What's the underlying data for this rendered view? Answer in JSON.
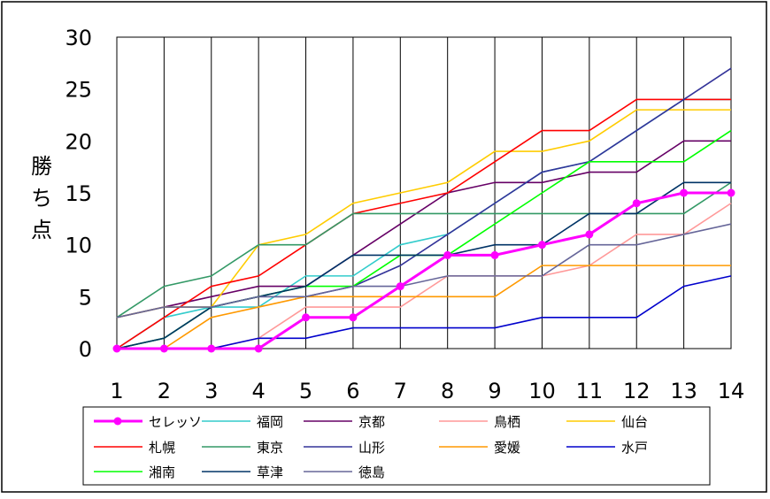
{
  "chart_data": {
    "type": "line",
    "title": "",
    "xlabel": "",
    "ylabel": "勝ち点",
    "ylim": [
      0,
      30
    ],
    "yticks": [
      0,
      5,
      10,
      15,
      20,
      25,
      30
    ],
    "x": [
      1,
      2,
      3,
      4,
      5,
      6,
      7,
      8,
      9,
      10,
      11,
      12,
      13,
      14
    ],
    "grid": "vertical",
    "legend_position": "bottom",
    "series": [
      {
        "name": "セレッソ",
        "color": "#ff00ff",
        "marker": true,
        "values": [
          0,
          0,
          0,
          0,
          3,
          3,
          6,
          9,
          9,
          10,
          11,
          14,
          15,
          15
        ]
      },
      {
        "name": "福岡",
        "color": "#33cccc",
        "marker": false,
        "values": [
          0,
          3,
          4,
          4,
          7,
          7,
          10,
          11,
          14,
          17,
          18,
          21,
          24,
          24
        ]
      },
      {
        "name": "京都",
        "color": "#660066",
        "marker": false,
        "values": [
          3,
          4,
          5,
          6,
          6,
          9,
          12,
          15,
          16,
          16,
          17,
          17,
          20,
          20
        ]
      },
      {
        "name": "鳥栖",
        "color": "#ff9999",
        "marker": false,
        "values": [
          0,
          0,
          0,
          1,
          4,
          4,
          4,
          7,
          7,
          7,
          8,
          11,
          11,
          14
        ]
      },
      {
        "name": "仙台",
        "color": "#ffcc00",
        "marker": false,
        "values": [
          3,
          4,
          4,
          10,
          11,
          14,
          15,
          16,
          19,
          19,
          20,
          23,
          23,
          23
        ]
      },
      {
        "name": "札幌",
        "color": "#ff0000",
        "marker": false,
        "values": [
          0,
          3,
          6,
          7,
          10,
          13,
          14,
          15,
          18,
          21,
          21,
          24,
          24,
          24
        ]
      },
      {
        "name": "東京",
        "color": "#339966",
        "marker": false,
        "values": [
          3,
          6,
          7,
          10,
          10,
          13,
          13,
          13,
          13,
          13,
          13,
          13,
          13,
          16
        ]
      },
      {
        "name": "山形",
        "color": "#333399",
        "marker": false,
        "values": [
          0,
          1,
          4,
          5,
          5,
          6,
          8,
          11,
          14,
          17,
          18,
          21,
          24,
          27
        ]
      },
      {
        "name": "愛媛",
        "color": "#ff9900",
        "marker": false,
        "values": [
          0,
          0,
          3,
          4,
          5,
          5,
          5,
          5,
          5,
          8,
          8,
          8,
          8,
          8
        ]
      },
      {
        "name": "水戸",
        "color": "#0000cc",
        "marker": false,
        "values": [
          0,
          0,
          0,
          1,
          1,
          2,
          2,
          2,
          2,
          3,
          3,
          3,
          6,
          7
        ]
      },
      {
        "name": "湘南",
        "color": "#00ff00",
        "marker": false,
        "values": [
          0,
          1,
          4,
          5,
          6,
          6,
          9,
          9,
          12,
          15,
          18,
          18,
          18,
          21
        ]
      },
      {
        "name": "草津",
        "color": "#003366",
        "marker": false,
        "values": [
          0,
          1,
          4,
          5,
          6,
          9,
          9,
          9,
          10,
          10,
          13,
          13,
          16,
          16
        ]
      },
      {
        "name": "徳島",
        "color": "#666699",
        "marker": false,
        "values": [
          3,
          4,
          4,
          5,
          5,
          6,
          6,
          7,
          7,
          7,
          10,
          10,
          11,
          12
        ]
      }
    ]
  }
}
